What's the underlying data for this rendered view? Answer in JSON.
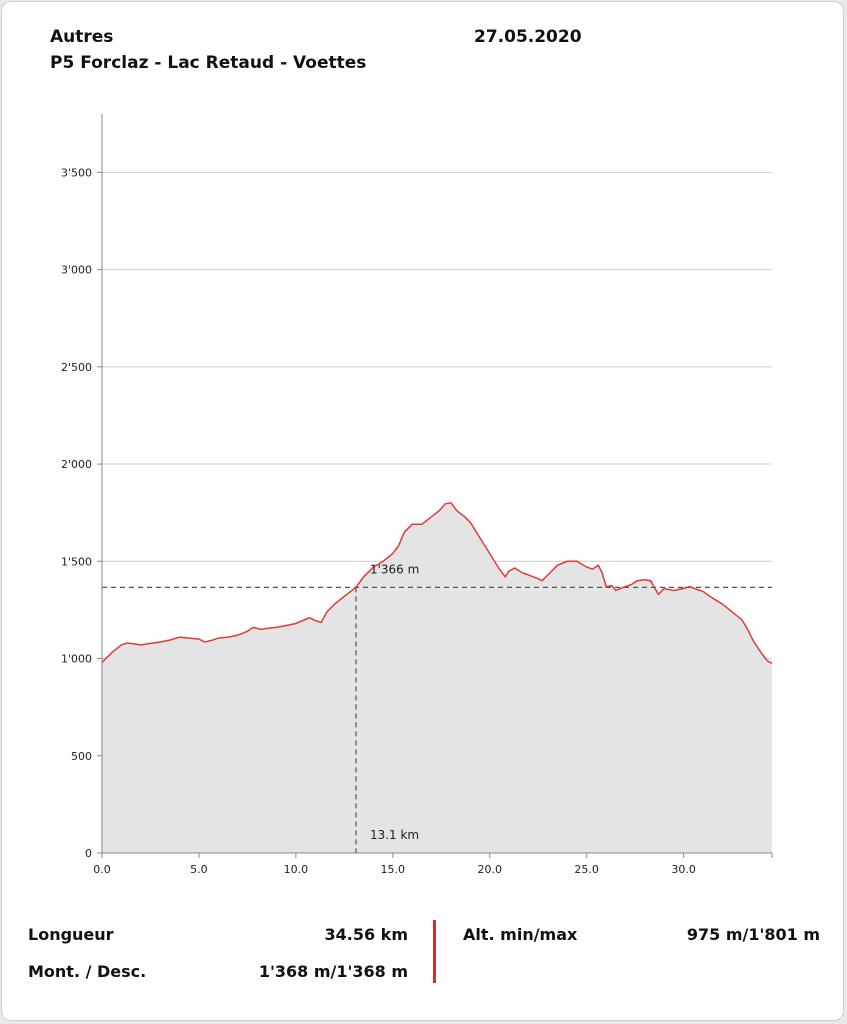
{
  "header": {
    "category": "Autres",
    "date": "27.05.2020",
    "route": "P5 Forclaz - Lac Retaud - Voettes"
  },
  "colors": {
    "line": "#e53935",
    "fill": "#e4e4e4",
    "grid": "#cccccc",
    "axis": "#888888",
    "marker": "#555555",
    "divider": "#d32f2f"
  },
  "chart_data": {
    "type": "area",
    "xlim": [
      0,
      34.56
    ],
    "ylim": [
      0,
      3800
    ],
    "x_ticks": [
      0,
      5,
      10,
      15,
      20,
      25,
      30
    ],
    "x_tick_labels": [
      "0.0",
      "5.0",
      "10.0",
      "15.0",
      "20.0",
      "25.0",
      "30.0"
    ],
    "y_ticks": [
      0,
      500,
      1000,
      1500,
      2000,
      2500,
      3000,
      3500
    ],
    "y_tick_labels": [
      "0",
      "500",
      "1'000",
      "1'500",
      "2'000",
      "2'500",
      "3'000",
      "3'500"
    ],
    "grid": true,
    "x": [
      0,
      0.5,
      1.0,
      1.3,
      2.0,
      3.0,
      3.5,
      4.0,
      4.5,
      5.0,
      5.3,
      5.7,
      6.0,
      6.5,
      7.0,
      7.5,
      7.8,
      8.2,
      8.5,
      9.0,
      9.5,
      10.0,
      10.7,
      11.0,
      11.3,
      11.6,
      12.0,
      12.5,
      13.1,
      13.5,
      14.0,
      14.5,
      15.0,
      15.3,
      15.6,
      16.0,
      16.5,
      17.0,
      17.4,
      17.7,
      18.0,
      18.3,
      18.7,
      19.0,
      19.5,
      20.0,
      20.5,
      20.8,
      21.0,
      21.3,
      21.7,
      22.0,
      22.5,
      22.7,
      23.0,
      23.5,
      24.0,
      24.5,
      25.0,
      25.3,
      25.6,
      25.8,
      26.0,
      26.3,
      26.5,
      27.0,
      27.3,
      27.6,
      28.0,
      28.3,
      28.7,
      29.0,
      29.2,
      29.5,
      30.0,
      30.3,
      30.7,
      31.0,
      31.5,
      32.0,
      32.5,
      33.0,
      33.3,
      33.6,
      34.0,
      34.3,
      34.56
    ],
    "y": [
      980,
      1030,
      1070,
      1080,
      1070,
      1085,
      1095,
      1110,
      1105,
      1100,
      1085,
      1095,
      1105,
      1110,
      1120,
      1140,
      1160,
      1150,
      1155,
      1160,
      1170,
      1180,
      1210,
      1195,
      1185,
      1240,
      1280,
      1320,
      1366,
      1420,
      1470,
      1500,
      1540,
      1580,
      1650,
      1690,
      1690,
      1730,
      1760,
      1795,
      1801,
      1760,
      1730,
      1700,
      1620,
      1540,
      1460,
      1420,
      1450,
      1465,
      1440,
      1430,
      1410,
      1400,
      1430,
      1480,
      1500,
      1500,
      1470,
      1460,
      1480,
      1440,
      1370,
      1375,
      1350,
      1370,
      1380,
      1400,
      1405,
      1400,
      1330,
      1360,
      1355,
      1350,
      1360,
      1370,
      1355,
      1345,
      1310,
      1280,
      1240,
      1200,
      1150,
      1090,
      1030,
      990,
      975
    ],
    "marker": {
      "x": 13.1,
      "y": 1366,
      "x_label": "13.1 km",
      "y_label": "1'366 m"
    }
  },
  "stats": {
    "length_label": "Longueur",
    "length_value": "34.56 km",
    "ascent_label": "Mont. / Desc.",
    "ascent_value": "1'368 m/1'368 m",
    "alt_label": "Alt. min/max",
    "alt_value": "975 m/1'801 m"
  }
}
